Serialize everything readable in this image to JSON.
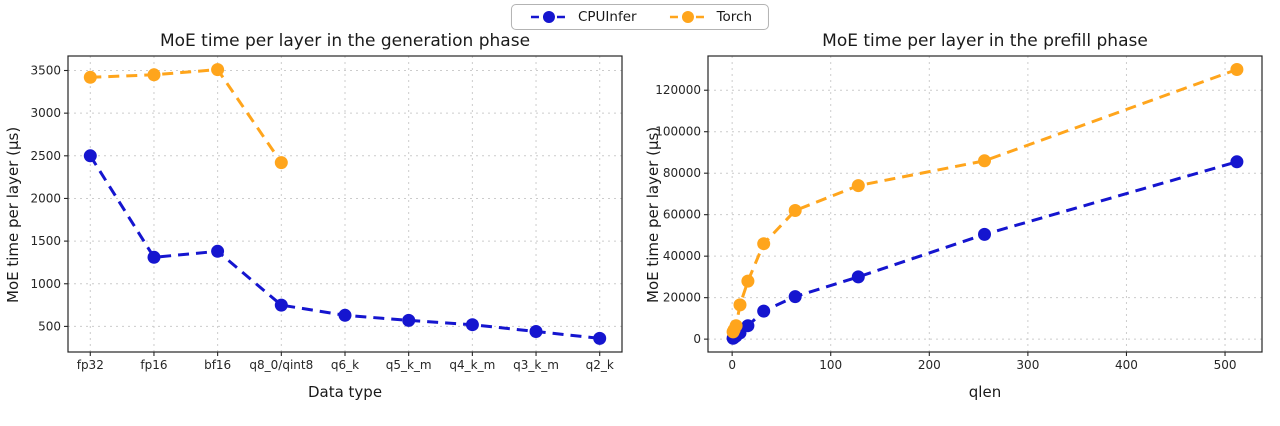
{
  "legend": {
    "items": [
      {
        "label": "CPUInfer",
        "color": "#1515cf"
      },
      {
        "label": "Torch",
        "color": "#ffa51c"
      }
    ]
  },
  "chart_data": [
    {
      "type": "line",
      "title": "MoE time per layer in the generation phase",
      "xlabel": "Data type",
      "ylabel": "MoE time per layer (μs)",
      "categories": [
        "fp32",
        "fp16",
        "bf16",
        "q8_0/qint8",
        "q6_k",
        "q5_k_m",
        "q4_k_m",
        "q3_k_m",
        "q2_k"
      ],
      "yticks": [
        500,
        1000,
        1500,
        2000,
        2500,
        3000,
        3500
      ],
      "ylim": [
        200,
        3670
      ],
      "grid": true,
      "legend_position": "top-center-figure",
      "series": [
        {
          "name": "CPUInfer",
          "color": "#1515cf",
          "values": [
            2500,
            1310,
            1380,
            750,
            630,
            570,
            520,
            440,
            360
          ]
        },
        {
          "name": "Torch",
          "color": "#ffa51c",
          "values": [
            3420,
            3450,
            3510,
            2420,
            null,
            null,
            null,
            null,
            null
          ]
        }
      ]
    },
    {
      "type": "line",
      "title": "MoE time per layer in the prefill phase",
      "xlabel": "qlen",
      "ylabel": "MoE time per layer (μs)",
      "x": [
        1,
        2,
        4,
        8,
        16,
        32,
        64,
        128,
        256,
        512
      ],
      "xticks": [
        0,
        100,
        200,
        300,
        400,
        500
      ],
      "xlim": [
        -24.5,
        537.5
      ],
      "yticks": [
        0,
        20000,
        40000,
        60000,
        80000,
        100000,
        120000
      ],
      "ylim": [
        -6200,
        136500
      ],
      "grid": true,
      "series": [
        {
          "name": "CPUInfer",
          "color": "#1515cf",
          "values": [
            400,
            800,
            1500,
            3000,
            6500,
            13500,
            20500,
            30000,
            50500,
            85500
          ]
        },
        {
          "name": "Torch",
          "color": "#ffa51c",
          "values": [
            3500,
            4500,
            6500,
            16500,
            28000,
            46000,
            62000,
            74000,
            86000,
            130000
          ]
        }
      ]
    }
  ]
}
